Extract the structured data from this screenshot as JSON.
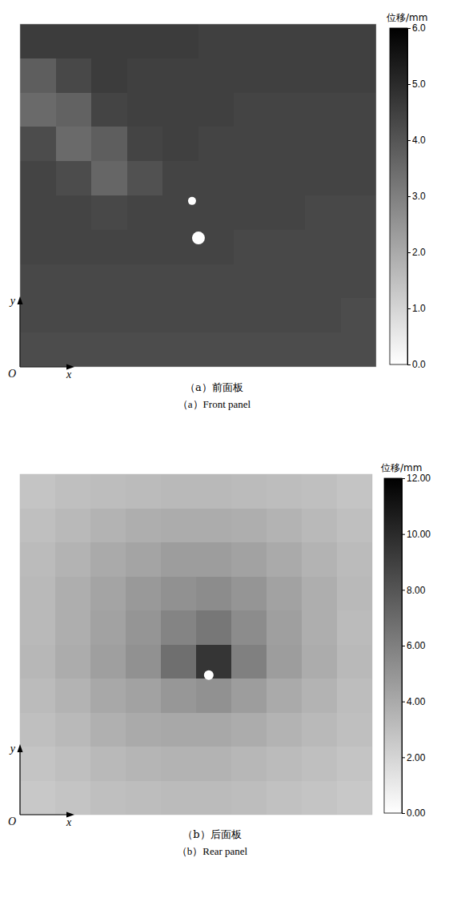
{
  "chart_data": [
    {
      "type": "heatmap",
      "title": "（a）前面板",
      "subtitle": "（a）Front panel",
      "xlabel": "x",
      "ylabel": "y",
      "origin_label": "O",
      "tick_labels": false,
      "cells": [
        [
          4.6,
          4.6,
          4.6,
          4.6,
          4.6,
          4.5,
          4.5,
          4.5,
          4.5,
          4.5
        ],
        [
          3.8,
          4.3,
          4.6,
          4.5,
          4.5,
          4.5,
          4.5,
          4.5,
          4.5,
          4.5
        ],
        [
          3.5,
          3.7,
          4.4,
          4.5,
          4.5,
          4.5,
          4.4,
          4.4,
          4.4,
          4.4
        ],
        [
          4.2,
          3.5,
          3.8,
          4.4,
          4.5,
          4.4,
          4.4,
          4.4,
          4.4,
          4.4
        ],
        [
          4.4,
          4.2,
          3.6,
          4.1,
          4.4,
          4.4,
          4.4,
          4.4,
          4.4,
          4.4
        ],
        [
          4.4,
          4.4,
          4.3,
          4.4,
          4.4,
          4.4,
          4.4,
          4.4,
          4.3,
          4.3
        ],
        [
          4.4,
          4.4,
          4.4,
          4.4,
          4.4,
          4.4,
          4.3,
          4.3,
          4.3,
          4.3
        ],
        [
          4.3,
          4.3,
          4.3,
          4.3,
          4.3,
          4.3,
          4.3,
          4.3,
          4.3,
          4.3
        ],
        [
          4.3,
          4.3,
          4.3,
          4.3,
          4.3,
          4.3,
          4.3,
          4.3,
          4.3,
          4.2
        ],
        [
          4.2,
          4.2,
          4.2,
          4.2,
          4.2,
          4.2,
          4.2,
          4.2,
          4.2,
          4.2
        ]
      ],
      "colorbar": {
        "label": "位移/mm",
        "range": [
          0,
          6
        ],
        "ticks": [
          {
            "value": 0,
            "label": "0.0"
          },
          {
            "value": 1,
            "label": "1.0"
          },
          {
            "value": 2,
            "label": "2.0"
          },
          {
            "value": 3,
            "label": "3.0"
          },
          {
            "value": 4,
            "label": "4.0"
          },
          {
            "value": 5,
            "label": "5.0"
          },
          {
            "value": 6,
            "label": "6.0"
          }
        ]
      }
    },
    {
      "type": "heatmap",
      "title": "（b）后面板",
      "subtitle": "（b）Rear panel",
      "xlabel": "x",
      "ylabel": "y",
      "origin_label": "O",
      "tick_labels": false,
      "cells": [
        [
          2.8,
          3.0,
          3.1,
          3.2,
          3.3,
          3.3,
          3.2,
          3.1,
          3.0,
          2.8
        ],
        [
          3.0,
          3.3,
          3.6,
          3.8,
          3.9,
          3.9,
          3.8,
          3.6,
          3.3,
          3.0
        ],
        [
          3.2,
          3.6,
          4.0,
          4.3,
          4.6,
          4.6,
          4.4,
          4.0,
          3.6,
          3.2
        ],
        [
          3.3,
          3.8,
          4.3,
          4.8,
          5.2,
          5.4,
          5.0,
          4.4,
          3.8,
          3.3
        ],
        [
          3.3,
          3.8,
          4.4,
          5.0,
          5.8,
          6.4,
          5.4,
          4.5,
          3.8,
          3.2
        ],
        [
          3.4,
          3.9,
          4.5,
          5.2,
          6.8,
          9.5,
          6.0,
          4.6,
          3.9,
          3.3
        ],
        [
          3.2,
          3.6,
          4.1,
          4.4,
          4.9,
          5.2,
          4.6,
          4.0,
          3.6,
          3.1
        ],
        [
          3.0,
          3.3,
          3.7,
          4.0,
          4.1,
          4.1,
          3.9,
          3.6,
          3.3,
          3.0
        ],
        [
          2.8,
          3.0,
          3.3,
          3.5,
          3.6,
          3.6,
          3.4,
          3.2,
          3.0,
          2.8
        ],
        [
          2.6,
          2.8,
          3.0,
          3.1,
          3.2,
          3.2,
          3.1,
          2.9,
          2.8,
          2.6
        ]
      ],
      "colorbar": {
        "label": "位移/mm",
        "range": [
          0,
          12
        ],
        "ticks": [
          {
            "value": 0,
            "label": "0.00"
          },
          {
            "value": 2,
            "label": "2.00"
          },
          {
            "value": 4,
            "label": "4.00"
          },
          {
            "value": 6,
            "label": "6.00"
          },
          {
            "value": 8,
            "label": "8.00"
          },
          {
            "value": 10,
            "label": "10.00"
          },
          {
            "value": 12,
            "label": "12.00"
          }
        ]
      }
    }
  ]
}
